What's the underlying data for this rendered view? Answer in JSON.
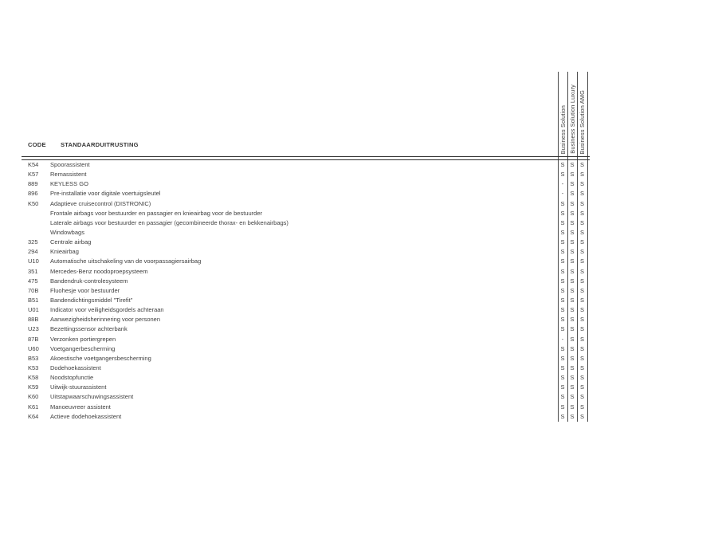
{
  "table": {
    "header": {
      "code_label": "CODE",
      "equipment_label": "STANDAARDUITRUSTING"
    },
    "columns": [
      "Business Solution",
      "Business Solution Luxury",
      "Business Solution AMG"
    ],
    "rows": [
      {
        "code": "K54",
        "description": "Spoorassistent",
        "values": [
          "S",
          "S",
          "S"
        ]
      },
      {
        "code": "K57",
        "description": "Remassistent",
        "values": [
          "S",
          "S",
          "S"
        ]
      },
      {
        "code": "889",
        "description": "KEYLESS GO",
        "values": [
          "-",
          "S",
          "S"
        ]
      },
      {
        "code": "896",
        "description": "Pre-installatie voor digitale voertuigsleutel",
        "values": [
          "-",
          "S",
          "S"
        ]
      },
      {
        "code": "K50",
        "description": "Adaptieve cruisecontrol (DISTRONIC)",
        "values": [
          "S",
          "S",
          "S"
        ]
      },
      {
        "code": "",
        "description": "Frontale airbags voor bestuurder en passagier en knieairbag voor de bestuurder",
        "values": [
          "S",
          "S",
          "S"
        ]
      },
      {
        "code": "",
        "description": "Laterale airbags voor bestuurder en passagier (gecombineerde thorax- en bekkenairbags)",
        "values": [
          "S",
          "S",
          "S"
        ]
      },
      {
        "code": "",
        "description": "Windowbags",
        "values": [
          "S",
          "S",
          "S"
        ]
      },
      {
        "code": "325",
        "description": "Centrale airbag",
        "values": [
          "S",
          "S",
          "S"
        ]
      },
      {
        "code": "294",
        "description": "Knieairbag",
        "values": [
          "S",
          "S",
          "S"
        ]
      },
      {
        "code": "U10",
        "description": "Automatische uitschakeling van de voorpassagiersairbag",
        "values": [
          "S",
          "S",
          "S"
        ]
      },
      {
        "code": "351",
        "description": "Mercedes-Benz noodoproepsysteem",
        "values": [
          "S",
          "S",
          "S"
        ]
      },
      {
        "code": "475",
        "description": "Bandendruk-controlesysteem",
        "values": [
          "S",
          "S",
          "S"
        ]
      },
      {
        "code": "70B",
        "description": "Fluohesje voor bestuurder",
        "values": [
          "S",
          "S",
          "S"
        ]
      },
      {
        "code": "B51",
        "description": "Bandendichtingsmiddel \"Tirefit\"",
        "values": [
          "S",
          "S",
          "S"
        ]
      },
      {
        "code": "U01",
        "description": "Indicator voor veiligheidsgordels achteraan",
        "values": [
          "S",
          "S",
          "S"
        ]
      },
      {
        "code": "88B",
        "description": "Aanwezigheidsherinnering voor personen",
        "values": [
          "S",
          "S",
          "S"
        ]
      },
      {
        "code": "U23",
        "description": "Bezettingssensor achterbank",
        "values": [
          "S",
          "S",
          "S"
        ]
      },
      {
        "code": "87B",
        "description": "Verzonken portiergrepen",
        "values": [
          "-",
          "S",
          "S"
        ]
      },
      {
        "code": "U60",
        "description": "Voetgangerbescherming",
        "values": [
          "S",
          "S",
          "S"
        ]
      },
      {
        "code": "B53",
        "description": "Akoestische voetgangersbescherming",
        "values": [
          "S",
          "S",
          "S"
        ]
      },
      {
        "code": "K53",
        "description": "Dodehoekassistent",
        "values": [
          "S",
          "S",
          "S"
        ]
      },
      {
        "code": "K58",
        "description": "Noodstopfunctie",
        "values": [
          "S",
          "S",
          "S"
        ]
      },
      {
        "code": "K59",
        "description": "Uitwijk-stuurassistent",
        "values": [
          "S",
          "S",
          "S"
        ]
      },
      {
        "code": "K60",
        "description": "Uitstapwaarschuwingsassistent",
        "values": [
          "S",
          "S",
          "S"
        ]
      },
      {
        "code": "K61",
        "description": "Manoeuvreer assistent",
        "values": [
          "S",
          "S",
          "S"
        ]
      },
      {
        "code": "K64",
        "description": "Actieve dodehoekassistent",
        "values": [
          "S",
          "S",
          "S"
        ]
      }
    ]
  },
  "colors": {
    "text": "#3f3f3f",
    "rule": "#2f2f2f",
    "column_rule": "#4a4a4a",
    "page_background": "#ffffff"
  }
}
